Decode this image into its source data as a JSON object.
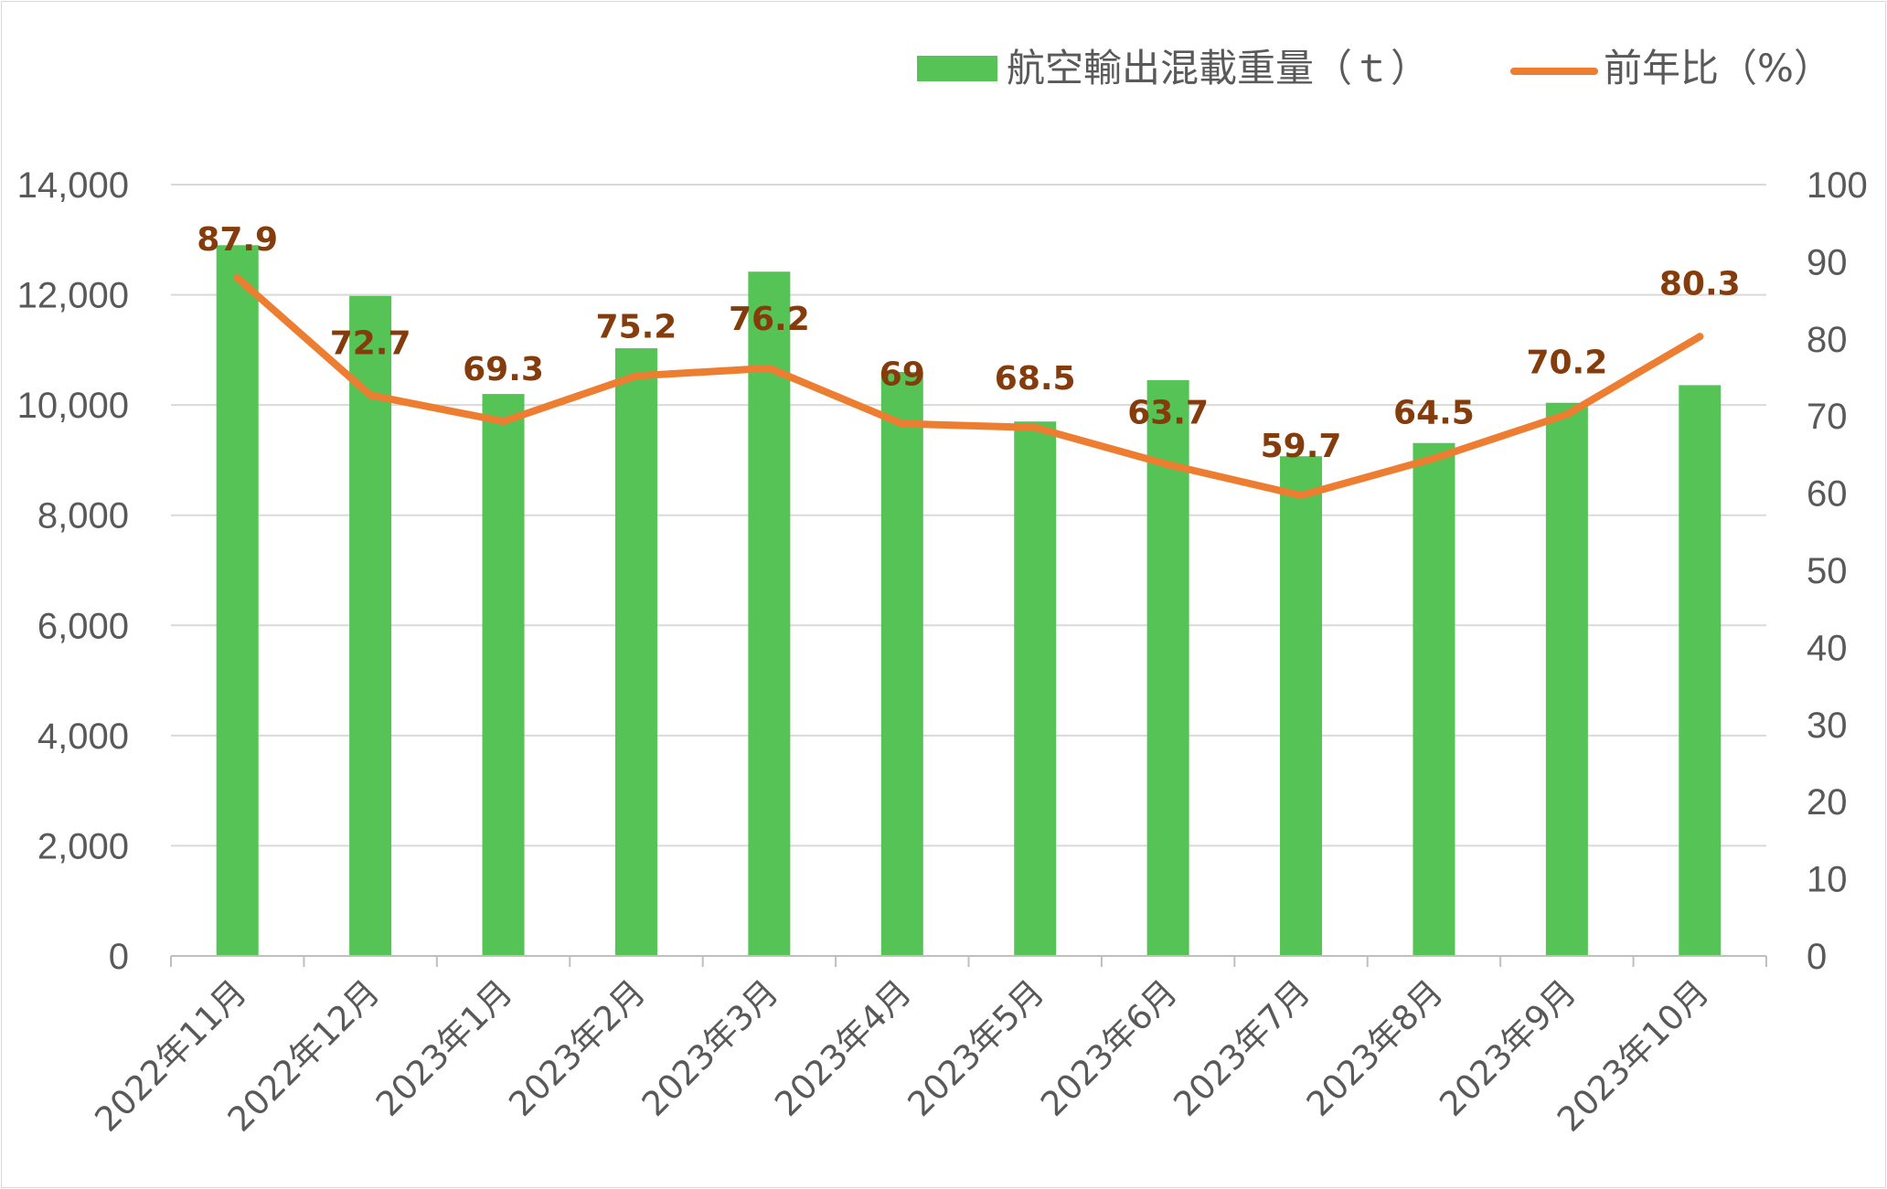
{
  "chart_data": {
    "type": "bar",
    "categories": [
      "2022年11月",
      "2022年12月",
      "2023年1月",
      "2023年2月",
      "2023年3月",
      "2023年4月",
      "2023年5月",
      "2023年6月",
      "2023年7月",
      "2023年8月",
      "2023年9月",
      "2023年10月"
    ],
    "series": [
      {
        "name": "航空輸出混載重量（ｔ）",
        "type": "bar",
        "axis": "left",
        "color": "#55c356",
        "values": [
          12900,
          11980,
          10200,
          11030,
          12420,
          10600,
          9700,
          10450,
          9070,
          9310,
          10040,
          10360
        ]
      },
      {
        "name": "前年比（%）",
        "type": "line",
        "axis": "right",
        "color": "#ed7d31",
        "values": [
          87.9,
          72.7,
          69.3,
          75.2,
          76.2,
          69,
          68.5,
          63.7,
          59.7,
          64.5,
          70.2,
          80.3
        ],
        "labels": [
          "87.9",
          "72.7",
          "69.3",
          "75.2",
          "76.2",
          "69",
          "68.5",
          "63.7",
          "59.7",
          "64.5",
          "70.2",
          "80.3"
        ]
      }
    ],
    "y_left": {
      "ylim": [
        0,
        14000
      ],
      "ticks": [
        "0",
        "2,000",
        "4,000",
        "6,000",
        "8,000",
        "10,000",
        "12,000",
        "14,000"
      ]
    },
    "y_right": {
      "ylim": [
        0,
        100
      ],
      "ticks": [
        "0",
        "10",
        "20",
        "30",
        "40",
        "50",
        "60",
        "70",
        "80",
        "90",
        "100"
      ]
    },
    "grid": true,
    "legend": "top-right",
    "label_color": "#843c0c"
  }
}
